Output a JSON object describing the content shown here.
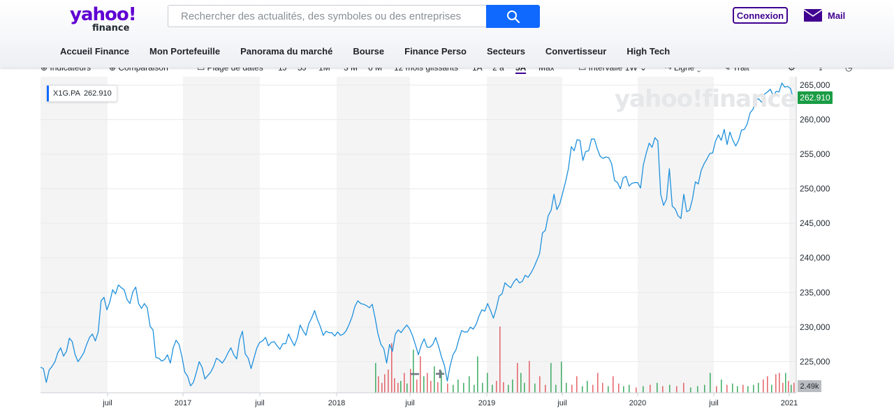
{
  "header": {
    "logo_main": "yahoo!",
    "logo_sub": "finance",
    "search_placeholder": "Rechercher des actualités, des symboles ou des entreprises",
    "login_label": "Connexion",
    "mail_label": "Mail",
    "accent_color": "#6001d2",
    "search_button_color": "#0f69ff"
  },
  "nav": {
    "items": [
      "Accueil Finance",
      "Mon Portefeuille",
      "Panorama du marché",
      "Bourse",
      "Finance Perso",
      "Secteurs",
      "Convertisseur",
      "High Tech"
    ]
  },
  "toolbar": {
    "indicators": "Indicateurs",
    "comparison": "Comparaison",
    "date_range": "Plage de dates",
    "ranges": [
      "1J",
      "5J",
      "1M",
      "3 M",
      "6 M",
      "12 mois glissants",
      "1A",
      "2 a",
      "5A",
      "Max"
    ],
    "active_range": "5A",
    "interval": "Intervalle 1W",
    "line": "Ligne",
    "draw": "Trait"
  },
  "chart_data": {
    "type": "line",
    "symbol": "X1G.PA",
    "last_price": "262.910",
    "volume_label": "2.49k",
    "watermark": "yahoo!finance",
    "ylim": [
      220500,
      265600
    ],
    "y_ticks": [
      "265,000",
      "260,000",
      "255,000",
      "250,000",
      "245,000",
      "240,000",
      "235,000",
      "230,000",
      "225,000"
    ],
    "x_ticks": [
      "juil",
      "2017",
      "juil",
      "2018",
      "juil",
      "2019",
      "juil",
      "2020",
      "juil",
      "2021"
    ],
    "zoom_out": "−",
    "zoom_in": "+",
    "series": [
      {
        "name": "X1G.PA",
        "values": [
          224.2,
          224.0,
          222.0,
          223.8,
          224.3,
          225.0,
          226.3,
          227.0,
          225.8,
          226.5,
          228.4,
          227.9,
          226.0,
          225.0,
          225.6,
          226.3,
          227.5,
          228.5,
          229.0,
          228.0,
          229.3,
          233.8,
          234.3,
          232.5,
          233.6,
          235.4,
          234.8,
          236.1,
          235.7,
          235.4,
          234.0,
          233.4,
          235.1,
          235.8,
          233.4,
          232.7,
          233.4,
          232.8,
          230.1,
          229.6,
          225.6,
          225.5,
          225.1,
          225.3,
          226.0,
          224.8,
          227.0,
          228.1,
          227.5,
          225.8,
          223.5,
          222.9,
          221.5,
          222.0,
          223.4,
          225.0,
          224.2,
          222.5,
          223.0,
          223.5,
          224.3,
          225.5,
          225.2,
          224.8,
          225.4,
          226.3,
          227.0,
          226.0,
          225.4,
          228.2,
          229.4,
          226.1,
          225.5,
          224.0,
          225.5,
          227.0,
          227.8,
          228.0,
          228.5,
          227.3,
          227.8,
          227.9,
          227.3,
          226.8,
          227.6,
          227.6,
          229.0,
          228.1,
          227.3,
          228.4,
          230.3,
          229.5,
          228.8,
          230.5,
          231.3,
          232.4,
          231.1,
          230.1,
          228.8,
          229.4,
          229.2,
          229.2,
          228.7,
          229.3,
          228.8,
          229.0,
          229.5,
          230.4,
          231.5,
          233.0,
          233.8,
          233.4,
          233.3,
          233.1,
          232.8,
          233.3,
          231.3,
          229.0,
          227.5,
          226.9,
          224.8,
          227.5,
          226.5,
          229.0,
          229.6,
          229.2,
          229.8,
          230.3,
          229.7,
          228.7,
          227.4,
          226.0,
          227.4,
          228.3,
          227.1,
          227.1,
          227.5,
          228.5,
          227.2,
          225.7,
          224.5,
          222.2,
          224.4,
          226.0,
          226.7,
          228.2,
          229.5,
          229.3,
          229.3,
          230.0,
          229.7,
          230.4,
          231.6,
          232.5,
          232.3,
          233.4,
          232.4,
          231.3,
          232.7,
          234.5,
          234.8,
          236.4,
          236.0,
          235.7,
          236.5,
          237.0,
          236.4,
          236.6,
          237.5,
          237.2,
          237.8,
          238.6,
          239.6,
          240.6,
          243.6,
          244.0,
          246.1,
          246.9,
          249.2,
          247.0,
          247.8,
          249.4,
          251.0,
          252.9,
          256.1,
          255.5,
          257.1,
          257.0,
          254.1,
          255.4,
          255.5,
          257.2,
          257.2,
          255.8,
          254.7,
          254.4,
          254.6,
          254.5,
          253.6,
          251.2,
          250.9,
          250.0,
          251.6,
          251.8,
          250.4,
          250.8,
          250.9,
          250.9,
          250.1,
          253.5,
          255.2,
          256.6,
          256.0,
          257.4,
          256.9,
          249.2,
          247.6,
          248.5,
          252.9,
          247.5,
          247.1,
          246.1,
          245.7,
          249.2,
          246.7,
          246.9,
          248.5,
          251.0,
          250.7,
          252.6,
          253.6,
          254.3,
          255.1,
          255.2,
          256.9,
          257.8,
          257.0,
          258.6,
          256.4,
          258.2,
          257.0,
          256.2,
          257.0,
          258.5,
          258.6,
          259.4,
          261.0,
          261.5,
          262.9,
          263.0,
          262.5,
          263.7,
          264.0,
          264.4,
          263.4,
          264.1,
          264.0,
          265.3,
          264.7,
          264.8,
          264.5,
          262.9
        ]
      }
    ],
    "volume_bars": [
      {
        "x": 537,
        "v": 0.45,
        "c": "up"
      },
      {
        "x": 541,
        "v": 0.25,
        "c": "down"
      },
      {
        "x": 546,
        "v": 0.15,
        "c": "down"
      },
      {
        "x": 550,
        "v": 0.28,
        "c": "down"
      },
      {
        "x": 555,
        "v": 0.35,
        "c": "down"
      },
      {
        "x": 560,
        "v": 0.75,
        "c": "down"
      },
      {
        "x": 564,
        "v": 0.22,
        "c": "down"
      },
      {
        "x": 569,
        "v": 0.15,
        "c": "down"
      },
      {
        "x": 573,
        "v": 0.18,
        "c": "up"
      },
      {
        "x": 578,
        "v": 0.3,
        "c": "down"
      },
      {
        "x": 582,
        "v": 0.14,
        "c": "up"
      },
      {
        "x": 587,
        "v": 0.36,
        "c": "down"
      },
      {
        "x": 591,
        "v": 0.65,
        "c": "up"
      },
      {
        "x": 596,
        "v": 0.2,
        "c": "down"
      },
      {
        "x": 601,
        "v": 0.55,
        "c": "down"
      },
      {
        "x": 606,
        "v": 0.25,
        "c": "up"
      },
      {
        "x": 611,
        "v": 0.3,
        "c": "down"
      },
      {
        "x": 616,
        "v": 0.18,
        "c": "down"
      },
      {
        "x": 621,
        "v": 0.4,
        "c": "up"
      },
      {
        "x": 626,
        "v": 0.16,
        "c": "down"
      },
      {
        "x": 631,
        "v": 0.33,
        "c": "up"
      },
      {
        "x": 640,
        "v": 0.14,
        "c": "down"
      },
      {
        "x": 648,
        "v": 0.12,
        "c": "up"
      },
      {
        "x": 655,
        "v": 0.2,
        "c": "up"
      },
      {
        "x": 663,
        "v": 0.15,
        "c": "up"
      },
      {
        "x": 671,
        "v": 0.25,
        "c": "up"
      },
      {
        "x": 678,
        "v": 0.12,
        "c": "up"
      },
      {
        "x": 683,
        "v": 0.55,
        "c": "up"
      },
      {
        "x": 690,
        "v": 0.15,
        "c": "up"
      },
      {
        "x": 697,
        "v": 0.3,
        "c": "up"
      },
      {
        "x": 704,
        "v": 0.12,
        "c": "up"
      },
      {
        "x": 710,
        "v": 0.18,
        "c": "down"
      },
      {
        "x": 715,
        "v": 1.0,
        "c": "down"
      },
      {
        "x": 720,
        "v": 0.16,
        "c": "down"
      },
      {
        "x": 727,
        "v": 0.12,
        "c": "up"
      },
      {
        "x": 733,
        "v": 0.2,
        "c": "up"
      },
      {
        "x": 740,
        "v": 0.45,
        "c": "down"
      },
      {
        "x": 745,
        "v": 0.3,
        "c": "up"
      },
      {
        "x": 750,
        "v": 0.15,
        "c": "up"
      },
      {
        "x": 757,
        "v": 0.48,
        "c": "down"
      },
      {
        "x": 765,
        "v": 0.14,
        "c": "up"
      },
      {
        "x": 772,
        "v": 0.25,
        "c": "down"
      },
      {
        "x": 780,
        "v": 0.12,
        "c": "down"
      },
      {
        "x": 788,
        "v": 0.45,
        "c": "up"
      },
      {
        "x": 795,
        "v": 0.12,
        "c": "up"
      },
      {
        "x": 803,
        "v": 0.47,
        "c": "up"
      },
      {
        "x": 810,
        "v": 0.15,
        "c": "up"
      },
      {
        "x": 818,
        "v": 0.12,
        "c": "down"
      },
      {
        "x": 825,
        "v": 0.25,
        "c": "down"
      },
      {
        "x": 833,
        "v": 0.1,
        "c": "up"
      },
      {
        "x": 840,
        "v": 0.18,
        "c": "up"
      },
      {
        "x": 848,
        "v": 0.12,
        "c": "down"
      },
      {
        "x": 855,
        "v": 0.3,
        "c": "down"
      },
      {
        "x": 862,
        "v": 0.15,
        "c": "down"
      },
      {
        "x": 870,
        "v": 0.1,
        "c": "up"
      },
      {
        "x": 877,
        "v": 0.25,
        "c": "down"
      },
      {
        "x": 885,
        "v": 0.14,
        "c": "down"
      },
      {
        "x": 892,
        "v": 0.1,
        "c": "up"
      },
      {
        "x": 900,
        "v": 0.12,
        "c": "up"
      },
      {
        "x": 910,
        "v": 0.08,
        "c": "down"
      },
      {
        "x": 920,
        "v": 0.1,
        "c": "up"
      },
      {
        "x": 930,
        "v": 0.12,
        "c": "down"
      },
      {
        "x": 940,
        "v": 0.15,
        "c": "up"
      },
      {
        "x": 948,
        "v": 0.1,
        "c": "down"
      },
      {
        "x": 958,
        "v": 0.12,
        "c": "up"
      },
      {
        "x": 968,
        "v": 0.1,
        "c": "down"
      },
      {
        "x": 978,
        "v": 0.15,
        "c": "down"
      },
      {
        "x": 988,
        "v": 0.08,
        "c": "up"
      },
      {
        "x": 998,
        "v": 0.1,
        "c": "up"
      },
      {
        "x": 1008,
        "v": 0.12,
        "c": "up"
      },
      {
        "x": 1016,
        "v": 0.3,
        "c": "up"
      },
      {
        "x": 1025,
        "v": 0.1,
        "c": "down"
      },
      {
        "x": 1032,
        "v": 0.2,
        "c": "up"
      },
      {
        "x": 1040,
        "v": 0.12,
        "c": "down"
      },
      {
        "x": 1048,
        "v": 0.14,
        "c": "up"
      },
      {
        "x": 1055,
        "v": 0.1,
        "c": "up"
      },
      {
        "x": 1063,
        "v": 0.12,
        "c": "down"
      },
      {
        "x": 1070,
        "v": 0.1,
        "c": "up"
      },
      {
        "x": 1078,
        "v": 0.12,
        "c": "up"
      },
      {
        "x": 1085,
        "v": 0.15,
        "c": "up"
      },
      {
        "x": 1092,
        "v": 0.2,
        "c": "down"
      },
      {
        "x": 1098,
        "v": 0.25,
        "c": "down"
      },
      {
        "x": 1104,
        "v": 0.12,
        "c": "up"
      },
      {
        "x": 1110,
        "v": 0.28,
        "c": "down"
      },
      {
        "x": 1115,
        "v": 0.3,
        "c": "down"
      },
      {
        "x": 1120,
        "v": 0.15,
        "c": "down"
      },
      {
        "x": 1124,
        "v": 0.3,
        "c": "up"
      },
      {
        "x": 1128,
        "v": 0.18,
        "c": "down"
      },
      {
        "x": 1132,
        "v": 0.12,
        "c": "up"
      },
      {
        "x": 1136,
        "v": 0.15,
        "c": "down"
      }
    ],
    "up_color": "#1a9c45",
    "down_color": "#e0464c",
    "line_color": "#1e90dc"
  }
}
